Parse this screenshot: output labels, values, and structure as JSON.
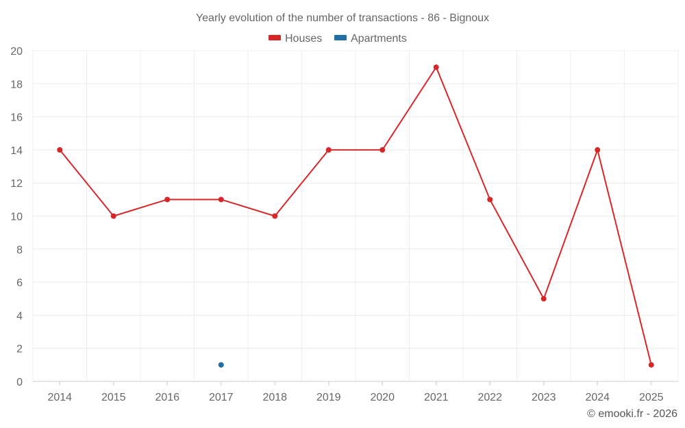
{
  "chart_data": {
    "type": "line",
    "title": "Yearly evolution of the number of transactions - 86 - Bignoux",
    "categories": [
      "2014",
      "2015",
      "2016",
      "2017",
      "2018",
      "2019",
      "2020",
      "2021",
      "2022",
      "2023",
      "2024",
      "2025"
    ],
    "series": [
      {
        "name": "Houses",
        "color": "#d62728",
        "values": [
          14,
          10,
          11,
          11,
          10,
          14,
          14,
          19,
          11,
          5,
          14,
          1
        ]
      },
      {
        "name": "Apartments",
        "color": "#1f6fa3",
        "values": [
          null,
          null,
          null,
          1,
          null,
          null,
          null,
          null,
          null,
          null,
          null,
          null
        ]
      }
    ],
    "ylim": [
      0,
      20
    ],
    "yticks": [
      "0",
      "2",
      "4",
      "6",
      "8",
      "10",
      "12",
      "14",
      "16",
      "18",
      "20"
    ],
    "xlabel": "",
    "ylabel": "",
    "grid": true,
    "legend_position": "top-center"
  },
  "credit": "© emooki.fr - 2026"
}
